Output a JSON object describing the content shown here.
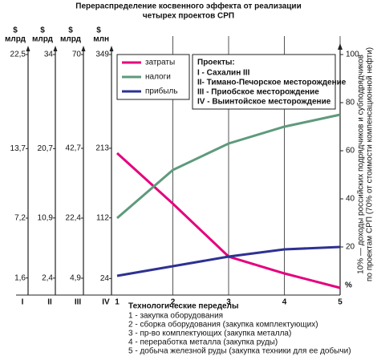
{
  "chart_data": {
    "type": "line",
    "title": [
      "Перераспределение косвенного эффекта от реализации",
      "четырех проектов СРП"
    ],
    "x": [
      1,
      2,
      3,
      4,
      5
    ],
    "xlim": [
      1,
      5
    ],
    "xticks": [
      1,
      2,
      3,
      4,
      5
    ],
    "xlabel": "Технологические переделы",
    "notes": [
      "1 - закупка оборудования",
      "2 - сборка оборудования (закупка комплектующих)",
      "3 - пр-во комплектующих (закупка металла)",
      "4 - переработка металла (закупка руды)",
      "5 - добыча железной руды (закупка техники для ее добычи)"
    ],
    "ylim": [
      0,
      100
    ],
    "yticks": [
      20,
      40,
      60,
      80,
      100
    ],
    "y_unit": "%",
    "ylabel": [
      "10% — доходы российских подрядчиков и субподрядчиков",
      "по проектам СРП (70% от стоимости компенсационной нефти)"
    ],
    "grid": true,
    "series": [
      {
        "name": "затраты",
        "color": "#e5007d",
        "values": [
          59,
          38,
          16,
          9,
          3
        ]
      },
      {
        "name": "налоги",
        "color": "#5e9a7c",
        "values": [
          32,
          52,
          63,
          70,
          75
        ]
      },
      {
        "name": "прибыль",
        "color": "#2e3192",
        "values": [
          8,
          12,
          16,
          19,
          20
        ]
      }
    ],
    "left_axes": [
      {
        "label": "I",
        "currency": "$",
        "unit": "млрд",
        "ylim": [
          0,
          22.5
        ],
        "yticks": [
          {
            "value": 22.5,
            "label": "22,5"
          },
          {
            "value": 13.7,
            "label": "13,7"
          },
          {
            "value": 7.2,
            "label": "7,2"
          },
          {
            "value": 1.6,
            "label": "1,6"
          }
        ]
      },
      {
        "label": "II",
        "currency": "$",
        "unit": "млрд",
        "ylim": [
          0,
          34
        ],
        "yticks": [
          34,
          {
            "value": 20.7,
            "label": "20,7"
          },
          {
            "value": 10.9,
            "label": "10,9"
          },
          {
            "value": 2.4,
            "label": "2,4"
          }
        ]
      },
      {
        "label": "III",
        "currency": "$",
        "unit": "млрд",
        "ylim": [
          0,
          70
        ],
        "yticks": [
          70,
          {
            "value": 42.7,
            "label": "42,7"
          },
          {
            "value": 22.4,
            "label": "22,4"
          },
          {
            "value": 4.9,
            "label": "4,9"
          }
        ]
      },
      {
        "label": "IV",
        "currency": "$",
        "unit": "млн",
        "ylim": [
          0,
          349
        ],
        "yticks": [
          349,
          213,
          112,
          24
        ]
      }
    ],
    "projects": {
      "title": "Проекты:",
      "items": [
        "I - Сахалин III",
        "II- Тимано-Печорское месторождение",
        "III - Приобское месторождение",
        "IV - Выинтойское месторождение"
      ]
    }
  }
}
